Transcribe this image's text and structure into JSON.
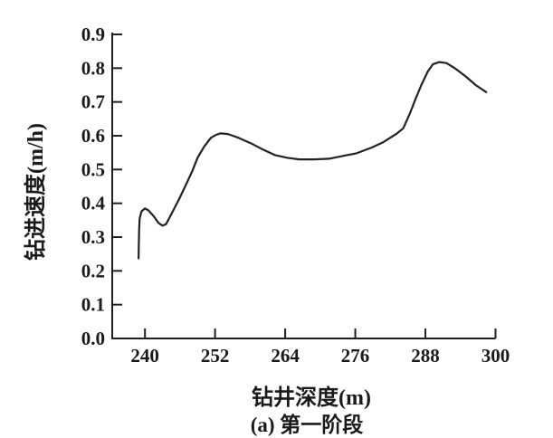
{
  "chart_data": {
    "type": "line",
    "title": "",
    "xlabel": "钻井深度(m)",
    "ylabel": "钻进速度(m/h)",
    "caption": "(a) 第一阶段",
    "xlim": [
      234.4,
      300
    ],
    "ylim": [
      0,
      0.9
    ],
    "x_ticks": [
      240,
      252,
      264,
      276,
      288,
      300
    ],
    "y_ticks": [
      0.0,
      0.1,
      0.2,
      0.3,
      0.4,
      0.5,
      0.6,
      0.7,
      0.8,
      0.9
    ],
    "grid": false,
    "legend": "none",
    "line_color": "#222222",
    "series": [
      {
        "name": "钻进速度",
        "x": [
          238.9,
          238.95,
          239.0,
          239.1,
          239.4,
          240.0,
          240.6,
          241.5,
          242.3,
          243.0,
          243.6,
          244.7,
          245.9,
          247.0,
          248.1,
          249.0,
          250.1,
          251.3,
          252.2,
          252.9,
          254.2,
          256.0,
          258.1,
          260.2,
          262.2,
          264.3,
          266.4,
          269.0,
          271.5,
          273.8,
          276.2,
          278.8,
          280.8,
          283.0,
          284.2,
          285.3,
          286.2,
          287.3,
          288.4,
          289.3,
          290.4,
          291.6,
          293.2,
          295.0,
          296.6,
          298.4
        ],
        "y": [
          0.237,
          0.28,
          0.32,
          0.355,
          0.376,
          0.385,
          0.379,
          0.362,
          0.342,
          0.334,
          0.338,
          0.374,
          0.414,
          0.454,
          0.495,
          0.535,
          0.567,
          0.594,
          0.603,
          0.607,
          0.605,
          0.594,
          0.578,
          0.559,
          0.543,
          0.535,
          0.53,
          0.53,
          0.532,
          0.54,
          0.548,
          0.565,
          0.581,
          0.605,
          0.622,
          0.664,
          0.704,
          0.75,
          0.79,
          0.812,
          0.818,
          0.815,
          0.798,
          0.774,
          0.75,
          0.729
        ]
      }
    ]
  }
}
